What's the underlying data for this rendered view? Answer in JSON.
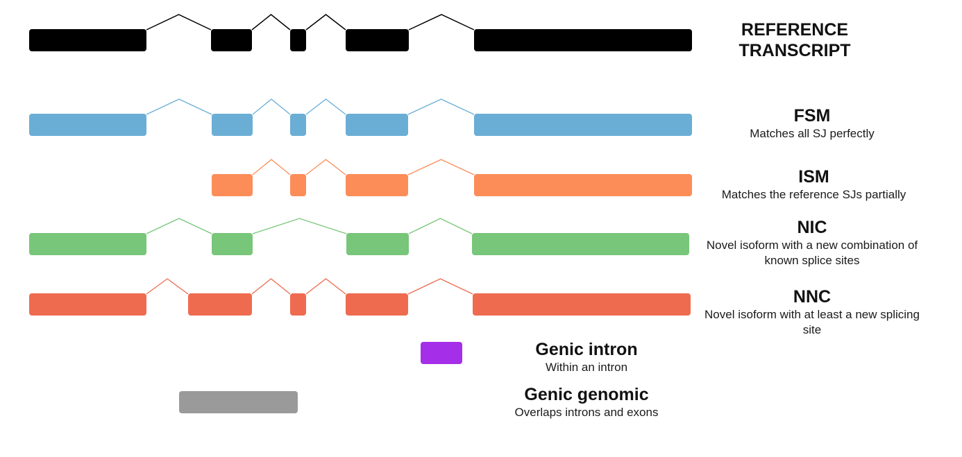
{
  "colors": {
    "reference": "#000000",
    "fsm": "#6aaed6",
    "ism": "#fc8d59",
    "nic": "#78c679",
    "nnc": "#ef6b4f",
    "genic_intron": "#a52ee8",
    "genic_genomic": "#9a9a9a"
  },
  "labels": {
    "reference": {
      "title": "REFERENCE TRANSCRIPT"
    },
    "fsm": {
      "title": "FSM",
      "desc": "Matches all SJ perfectly"
    },
    "ism": {
      "title": "ISM",
      "desc": "Matches the reference SJs partially"
    },
    "nic": {
      "title": "NIC",
      "desc": "Novel isoform with a new combination of known splice sites"
    },
    "nnc": {
      "title": "NNC",
      "desc": "Novel isoform with at least a new splicing site"
    },
    "genic_intron": {
      "title": "Genic intron",
      "desc": "Within an intron"
    },
    "genic_genomic": {
      "title": "Genic genomic",
      "desc": "Overlaps introns and exons"
    }
  }
}
